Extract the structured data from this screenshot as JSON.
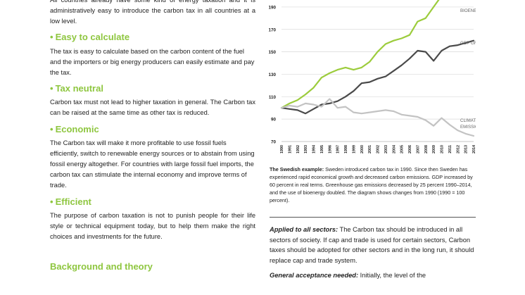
{
  "left": {
    "intro": "All countries already have some kind of energy taxation and it is administratively easy to introduce the carbon tax in all countries at a low level.",
    "sections": [
      {
        "heading": "Easy to calculate",
        "text": "The tax is easy to calculate based on the carbon content of the fuel and the importers or big energy producers can easily estimate and pay the tax."
      },
      {
        "heading": "Tax neutral",
        "text": "Carbon tax must not lead to higher taxation in general. The Carbon tax can be raised at the same time as other tax is reduced."
      },
      {
        "heading": "Economic",
        "text": "The Carbon tax will make it more profitable to use fossil fuels efficiently, switch to renewable energy sources or to abstain from using fossil energy altogether. For countries with large fossil fuel imports, the carbon tax can stimulate the internal economy and improve terms of trade."
      },
      {
        "heading": "Efficient",
        "text": "The purpose of carbon taxation is not to punish people for their life style or technical equipment today, but to help them make the right choices and investments for the future."
      }
    ],
    "bullet": "•",
    "bottom_heading": "Background and theory"
  },
  "chart_data": {
    "type": "line",
    "title": "",
    "xlabel": "",
    "ylabel": "",
    "x": [
      "1990",
      "1991",
      "1992",
      "1993",
      "1994",
      "1995",
      "1996",
      "1997",
      "1998",
      "1999",
      "2000",
      "2001",
      "2002",
      "2003",
      "2004",
      "2005",
      "2006",
      "2007",
      "2008",
      "2009",
      "2010",
      "2011",
      "2012",
      "2013",
      "2014"
    ],
    "yticks": [
      "190",
      "170",
      "150",
      "130",
      "110",
      "90",
      "70"
    ],
    "ylim": [
      70,
      200
    ],
    "grid": true,
    "series": [
      {
        "name": "BIOENERGY",
        "color": "#9ccc3c",
        "values": [
          100,
          104,
          107,
          112,
          118,
          127,
          131,
          134,
          136,
          134,
          136,
          141,
          150,
          157,
          160,
          162,
          165,
          177,
          180,
          190,
          200,
          197,
          205,
          206,
          202
        ]
      },
      {
        "name": "GDP GROWTH",
        "color": "#4a4a4a",
        "values": [
          100,
          99,
          98,
          95,
          99,
          103,
          104,
          106,
          110,
          115,
          122,
          123,
          126,
          128,
          133,
          138,
          144,
          151,
          150,
          142,
          151,
          155,
          156,
          158,
          160
        ]
      },
      {
        "name": "CLIMATE GAS EMISSIONS",
        "color": "#c3c3c3",
        "values": [
          100,
          102,
          101,
          104,
          103,
          101,
          108,
          100,
          101,
          96,
          95,
          96,
          97,
          98,
          97,
          94,
          93,
          92,
          89,
          84,
          91,
          85,
          80,
          77,
          75
        ]
      }
    ],
    "legend_labels": {
      "bio": "BIOENERGY",
      "gdp": "GDP GROWTH",
      "cg1": "CLIMATE GAS",
      "cg2": "EMISSIONS"
    }
  },
  "caption": {
    "bold": "The Swedish example:",
    "text": " Sweden introduced carbon tax in 1990. Since then Sweden has experienced rapid economical growth and decreased carbon emissions. GDP increased by 60 percent in real terms. Greenhouse gas emissions decreased by 25 percent 1990–2014, and the use of bioenergy doubled. The diagram shows changes from 1990 (1990 = 100 percent)."
  },
  "right": {
    "p1_bold": "Applied to all sectors:",
    "p1_text": " The Carbon tax should be introduced in all sectors of society. If cap and trade is used for certain sectors, Carbon taxes should be adopted for other sectors and in the long run, it should replace cap and trade system.",
    "p2_bold": "General acceptance needed:",
    "p2_text": " Initially, the level of the"
  }
}
